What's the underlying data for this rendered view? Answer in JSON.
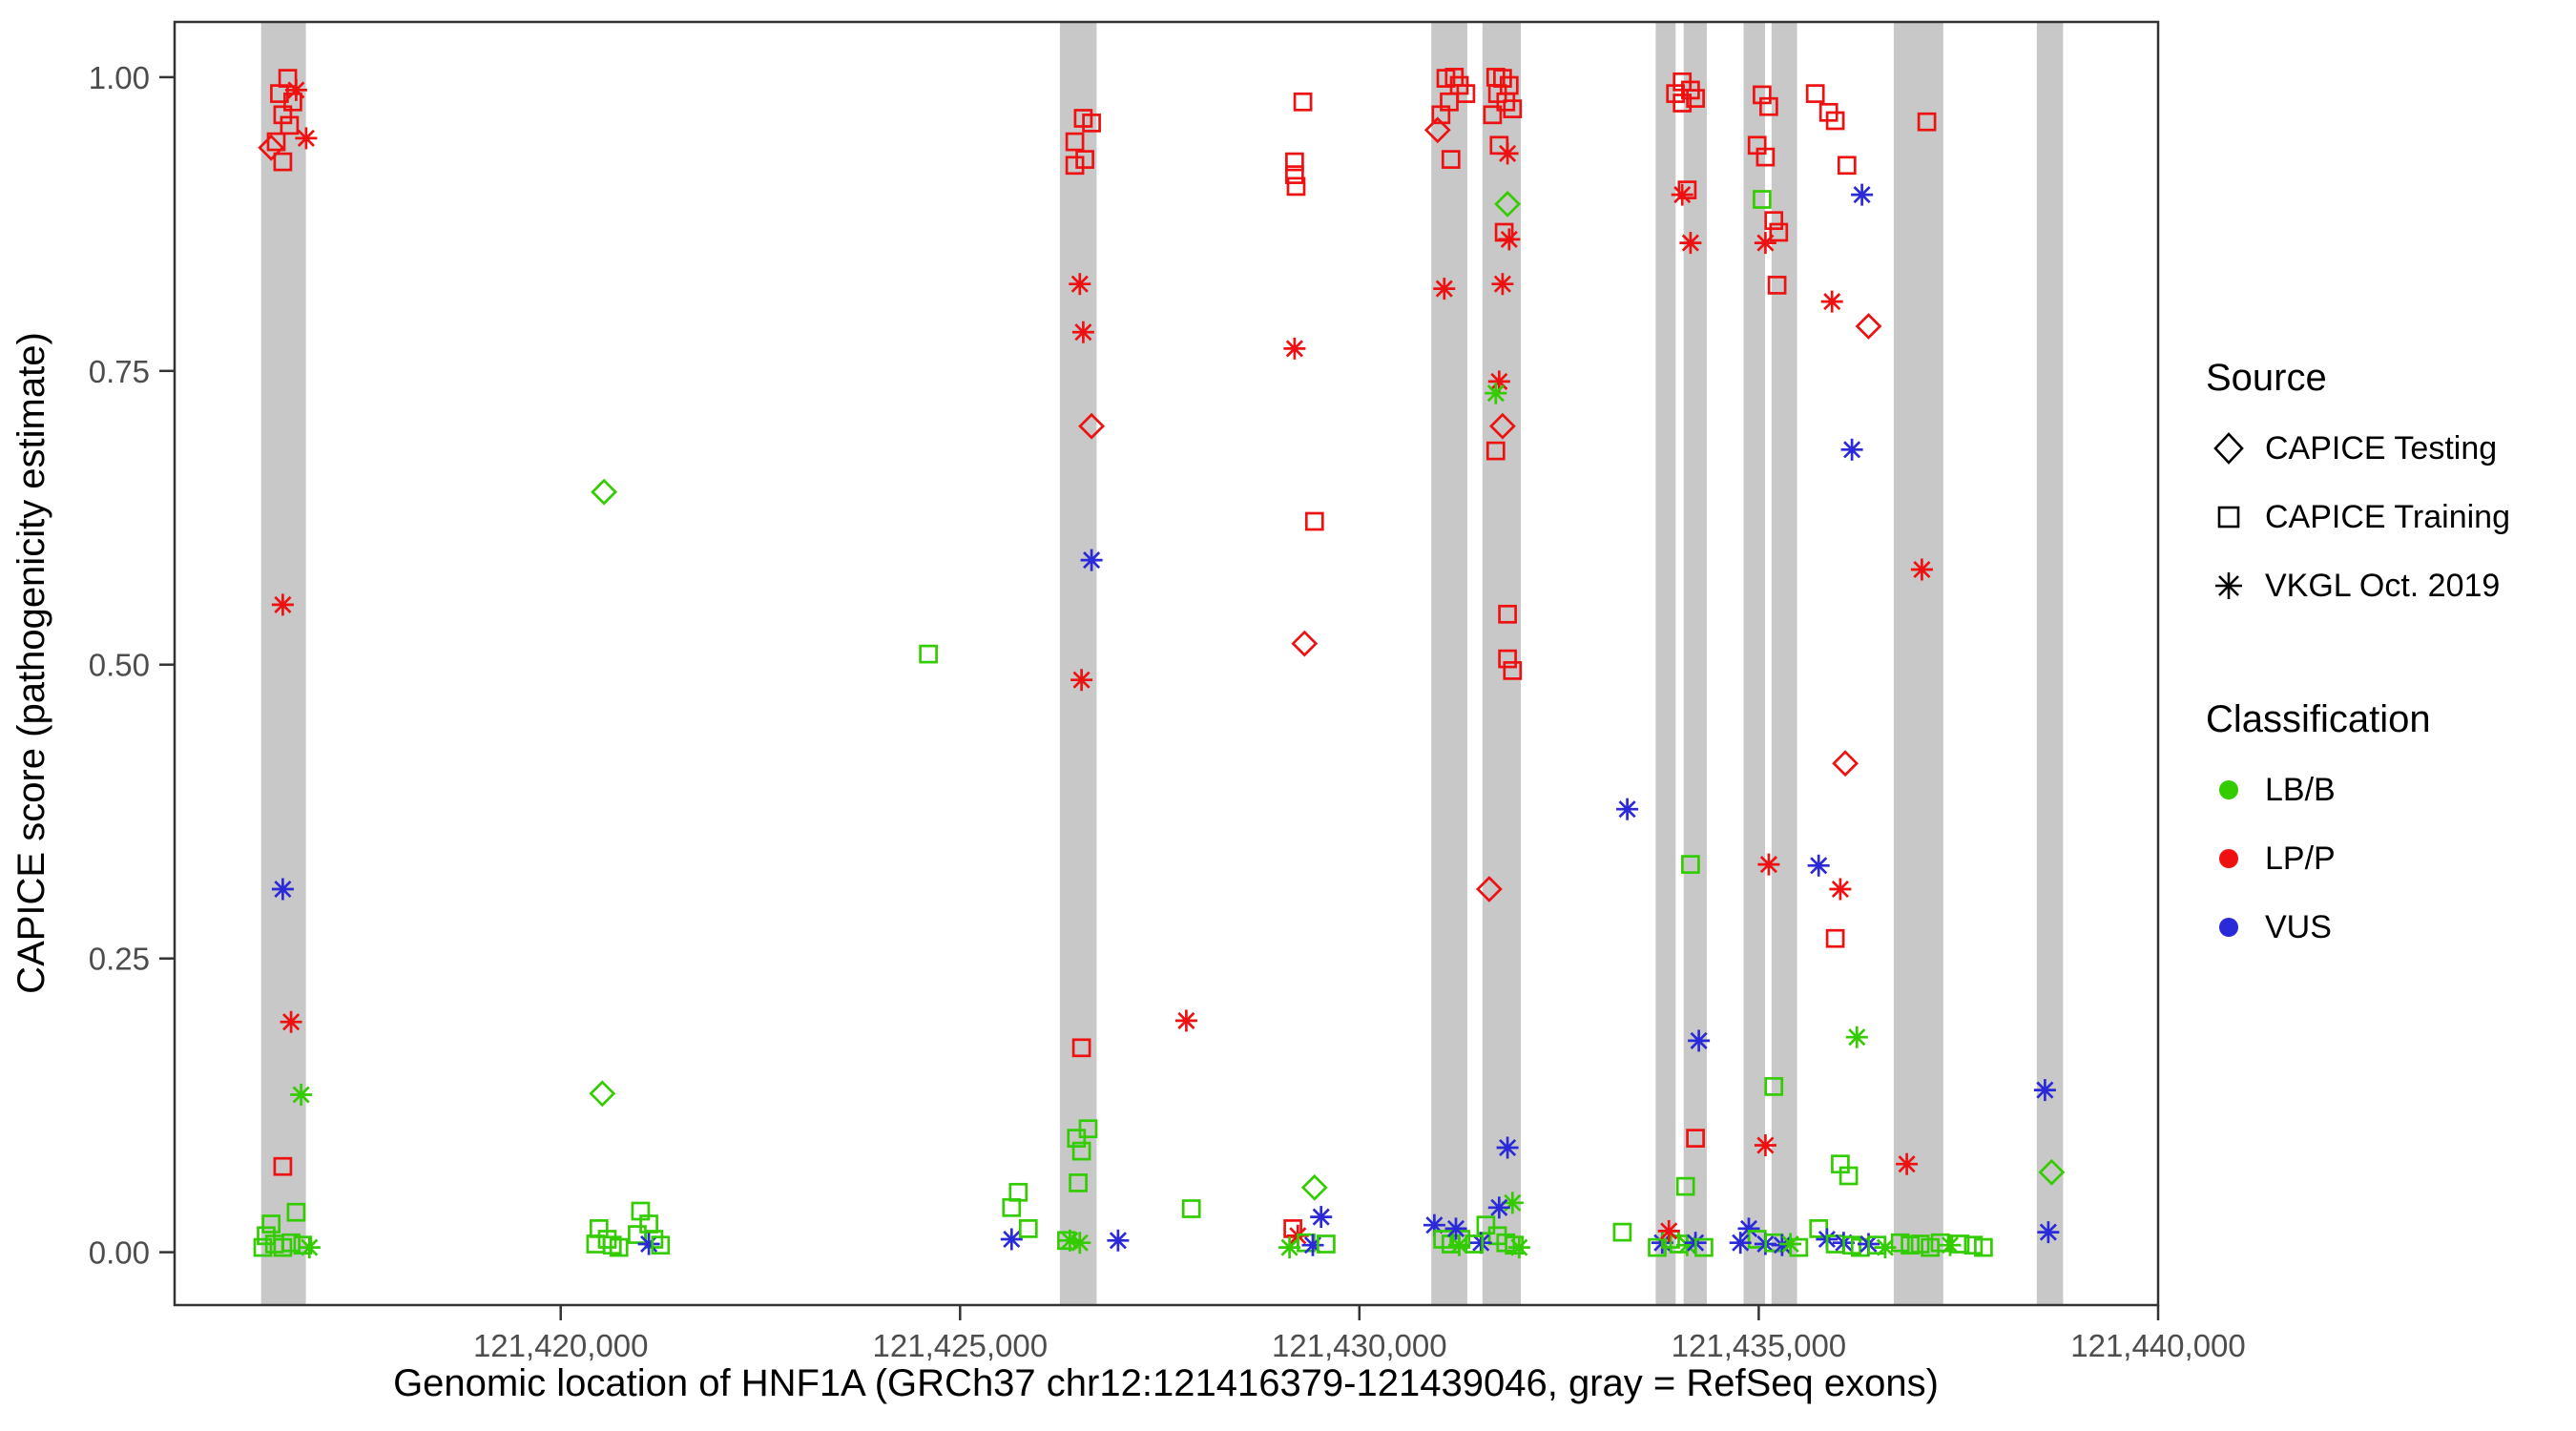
{
  "chart_data": {
    "type": "scatter",
    "title": "",
    "xlabel": "Genomic location of HNF1A (GRCh37 chr12:121416379-121439046, gray = RefSeq exons)",
    "ylabel": "CAPICE score (pathogenicity estimate)",
    "xlim": [
      121415166,
      121440000
    ],
    "ylim": [
      -0.045,
      1.047
    ],
    "grid": false,
    "legend_position": "right",
    "x_ticks": [
      {
        "v": 121420000,
        "label": "121,420,000"
      },
      {
        "v": 121425000,
        "label": "121,425,000"
      },
      {
        "v": 121430000,
        "label": "121,430,000"
      },
      {
        "v": 121435000,
        "label": "121,435,000"
      },
      {
        "v": 121440000,
        "label": "121,440,000"
      }
    ],
    "y_ticks": [
      {
        "v": 0.0,
        "label": "0.00"
      },
      {
        "v": 0.25,
        "label": "0.25"
      },
      {
        "v": 0.5,
        "label": "0.50"
      },
      {
        "v": 0.75,
        "label": "0.75"
      },
      {
        "v": 1.0,
        "label": "1.00"
      }
    ],
    "exon_color": "#C8C8C8",
    "exons": [
      [
        121416250,
        121416810
      ],
      [
        121426250,
        121426710
      ],
      [
        121430900,
        121431350
      ],
      [
        121431540,
        121432020
      ],
      [
        121433710,
        121433960
      ],
      [
        121434060,
        121434350
      ],
      [
        121434810,
        121435080
      ],
      [
        121435160,
        121435480
      ],
      [
        121436690,
        121437310
      ],
      [
        121438480,
        121438810
      ]
    ],
    "source_codes": {
      "D": "CAPICE Testing",
      "S": "CAPICE Training",
      "A": "VKGL Oct. 2019"
    },
    "source_shapes": {
      "CAPICE Testing": "diamond",
      "CAPICE Training": "square",
      "VKGL Oct. 2019": "asterisk"
    },
    "class_codes": {
      "B": "LB/B",
      "P": "LP/P",
      "V": "VUS"
    },
    "class_colors": {
      "LB/B": "#33CC00",
      "LP/P": "#EE1111",
      "VUS": "#2A2AD8"
    },
    "points": [
      [
        121416479,
        0.986,
        "S",
        "P"
      ],
      [
        121416583,
        0.999,
        "S",
        "P"
      ],
      [
        121416646,
        0.979,
        "S",
        "P"
      ],
      [
        121416521,
        0.968,
        "S",
        "P"
      ],
      [
        121416604,
        0.959,
        "S",
        "P"
      ],
      [
        121416438,
        0.945,
        "S",
        "P"
      ],
      [
        121416521,
        0.928,
        "S",
        "P"
      ],
      [
        121416375,
        0.94,
        "D",
        "P"
      ],
      [
        121416813,
        0.948,
        "A",
        "P"
      ],
      [
        121416688,
        0.989,
        "A",
        "P"
      ],
      [
        121416521,
        0.551,
        "A",
        "P"
      ],
      [
        121416521,
        0.309,
        "A",
        "V"
      ],
      [
        121416625,
        0.196,
        "A",
        "P"
      ],
      [
        121416750,
        0.134,
        "A",
        "B"
      ],
      [
        121416521,
        0.073,
        "S",
        "P"
      ],
      [
        121416375,
        0.024,
        "S",
        "B"
      ],
      [
        121416688,
        0.034,
        "S",
        "B"
      ],
      [
        121416313,
        0.014,
        "S",
        "B"
      ],
      [
        121416417,
        0.007,
        "S",
        "B"
      ],
      [
        121416521,
        0.004,
        "S",
        "B"
      ],
      [
        121416625,
        0.008,
        "S",
        "B"
      ],
      [
        121416771,
        0.006,
        "S",
        "B"
      ],
      [
        121416854,
        0.004,
        "A",
        "B"
      ],
      [
        121416271,
        0.004,
        "S",
        "B"
      ],
      [
        121420542,
        0.647,
        "D",
        "B"
      ],
      [
        121420521,
        0.135,
        "D",
        "B"
      ],
      [
        121420479,
        0.02,
        "S",
        "B"
      ],
      [
        121420583,
        0.011,
        "S",
        "B"
      ],
      [
        121420438,
        0.007,
        "S",
        "B"
      ],
      [
        121420646,
        0.006,
        "S",
        "B"
      ],
      [
        121420729,
        0.004,
        "S",
        "B"
      ],
      [
        121421000,
        0.035,
        "S",
        "B"
      ],
      [
        121421104,
        0.024,
        "S",
        "B"
      ],
      [
        121420958,
        0.015,
        "S",
        "B"
      ],
      [
        121421167,
        0.011,
        "S",
        "B"
      ],
      [
        121421104,
        0.007,
        "A",
        "V"
      ],
      [
        121421250,
        0.006,
        "S",
        "B"
      ],
      [
        121424604,
        0.509,
        "S",
        "B"
      ],
      [
        121425729,
        0.051,
        "S",
        "B"
      ],
      [
        121425646,
        0.038,
        "S",
        "B"
      ],
      [
        121425646,
        0.011,
        "A",
        "V"
      ],
      [
        121425854,
        0.02,
        "S",
        "B"
      ],
      [
        121426375,
        0.01,
        "A",
        "B"
      ],
      [
        121426979,
        0.01,
        "A",
        "V"
      ],
      [
        121426438,
        0.945,
        "S",
        "P"
      ],
      [
        121426542,
        0.965,
        "S",
        "P"
      ],
      [
        121426646,
        0.961,
        "S",
        "P"
      ],
      [
        121426438,
        0.925,
        "S",
        "P"
      ],
      [
        121426563,
        0.93,
        "S",
        "P"
      ],
      [
        121426500,
        0.824,
        "A",
        "P"
      ],
      [
        121426542,
        0.783,
        "A",
        "P"
      ],
      [
        121426646,
        0.703,
        "D",
        "P"
      ],
      [
        121426646,
        0.589,
        "A",
        "V"
      ],
      [
        121426521,
        0.487,
        "A",
        "P"
      ],
      [
        121426521,
        0.174,
        "S",
        "P"
      ],
      [
        121426458,
        0.097,
        "S",
        "B"
      ],
      [
        121426604,
        0.105,
        "S",
        "B"
      ],
      [
        121426521,
        0.086,
        "S",
        "B"
      ],
      [
        121426479,
        0.059,
        "S",
        "B"
      ],
      [
        121426333,
        0.01,
        "S",
        "B"
      ],
      [
        121426500,
        0.008,
        "A",
        "B"
      ],
      [
        121427833,
        0.197,
        "A",
        "P"
      ],
      [
        121427896,
        0.037,
        "S",
        "B"
      ],
      [
        121429292,
        0.979,
        "S",
        "P"
      ],
      [
        121429188,
        0.928,
        "S",
        "P"
      ],
      [
        121429188,
        0.917,
        "S",
        "P"
      ],
      [
        121429208,
        0.907,
        "S",
        "P"
      ],
      [
        121429188,
        0.769,
        "A",
        "P"
      ],
      [
        121429438,
        0.622,
        "S",
        "P"
      ],
      [
        121429313,
        0.518,
        "D",
        "P"
      ],
      [
        121429438,
        0.055,
        "D",
        "B"
      ],
      [
        121429521,
        0.03,
        "A",
        "V"
      ],
      [
        121429167,
        0.02,
        "S",
        "P"
      ],
      [
        121429229,
        0.014,
        "A",
        "P"
      ],
      [
        121429333,
        0.008,
        "S",
        "B"
      ],
      [
        121429417,
        0.006,
        "A",
        "V"
      ],
      [
        121429125,
        0.004,
        "A",
        "B"
      ],
      [
        121429583,
        0.007,
        "S",
        "B"
      ],
      [
        121431083,
        0.999,
        "S",
        "P"
      ],
      [
        121431188,
        1.0,
        "S",
        "P"
      ],
      [
        121431250,
        0.993,
        "S",
        "P"
      ],
      [
        121431333,
        0.986,
        "S",
        "P"
      ],
      [
        121431125,
        0.979,
        "S",
        "P"
      ],
      [
        121431021,
        0.968,
        "S",
        "P"
      ],
      [
        121430979,
        0.955,
        "D",
        "P"
      ],
      [
        121431146,
        0.93,
        "S",
        "P"
      ],
      [
        121431063,
        0.82,
        "A",
        "P"
      ],
      [
        121430938,
        0.023,
        "A",
        "V"
      ],
      [
        121431042,
        0.011,
        "S",
        "B"
      ],
      [
        121431146,
        0.007,
        "S",
        "B"
      ],
      [
        121431250,
        0.006,
        "A",
        "B"
      ],
      [
        121431708,
        1.0,
        "S",
        "P"
      ],
      [
        121431792,
        0.999,
        "S",
        "P"
      ],
      [
        121431875,
        0.993,
        "S",
        "P"
      ],
      [
        121431729,
        0.986,
        "S",
        "P"
      ],
      [
        121431833,
        0.979,
        "S",
        "P"
      ],
      [
        121431917,
        0.973,
        "S",
        "P"
      ],
      [
        121431667,
        0.968,
        "S",
        "P"
      ],
      [
        121431854,
        0.935,
        "A",
        "P"
      ],
      [
        121431750,
        0.942,
        "S",
        "P"
      ],
      [
        121431854,
        0.892,
        "D",
        "B"
      ],
      [
        121431813,
        0.868,
        "S",
        "P"
      ],
      [
        121431875,
        0.862,
        "A",
        "P"
      ],
      [
        121431792,
        0.824,
        "A",
        "P"
      ],
      [
        121431750,
        0.741,
        "A",
        "P"
      ],
      [
        121431708,
        0.731,
        "A",
        "B"
      ],
      [
        121431792,
        0.703,
        "D",
        "P"
      ],
      [
        121431708,
        0.682,
        "S",
        "P"
      ],
      [
        121431854,
        0.543,
        "S",
        "P"
      ],
      [
        121431854,
        0.505,
        "S",
        "P"
      ],
      [
        121431917,
        0.495,
        "S",
        "P"
      ],
      [
        121431625,
        0.309,
        "D",
        "P"
      ],
      [
        121431854,
        0.089,
        "A",
        "V"
      ],
      [
        121431917,
        0.042,
        "A",
        "B"
      ],
      [
        121431750,
        0.038,
        "A",
        "V"
      ],
      [
        121431583,
        0.023,
        "S",
        "B"
      ],
      [
        121431729,
        0.014,
        "S",
        "B"
      ],
      [
        121431833,
        0.008,
        "S",
        "B"
      ],
      [
        121431938,
        0.006,
        "S",
        "B"
      ],
      [
        121431521,
        0.008,
        "A",
        "V"
      ],
      [
        121432000,
        0.004,
        "A",
        "B"
      ],
      [
        121431438,
        0.007,
        "S",
        "B"
      ],
      [
        121431271,
        0.011,
        "S",
        "B"
      ],
      [
        121431208,
        0.02,
        "A",
        "V"
      ],
      [
        121433354,
        0.377,
        "A",
        "V"
      ],
      [
        121433292,
        0.017,
        "S",
        "B"
      ],
      [
        121434042,
        0.996,
        "S",
        "P"
      ],
      [
        121434146,
        0.989,
        "S",
        "P"
      ],
      [
        121434042,
        0.978,
        "S",
        "P"
      ],
      [
        121434208,
        0.982,
        "S",
        "P"
      ],
      [
        121433958,
        0.986,
        "S",
        "P"
      ],
      [
        121434042,
        0.9,
        "A",
        "P"
      ],
      [
        121434104,
        0.904,
        "S",
        "P"
      ],
      [
        121434146,
        0.859,
        "A",
        "P"
      ],
      [
        121434146,
        0.33,
        "S",
        "B"
      ],
      [
        121434250,
        0.18,
        "A",
        "V"
      ],
      [
        121434208,
        0.097,
        "S",
        "P"
      ],
      [
        121434083,
        0.056,
        "S",
        "B"
      ],
      [
        121433792,
        0.008,
        "A",
        "V"
      ],
      [
        121433896,
        0.011,
        "S",
        "B"
      ],
      [
        121434000,
        0.007,
        "S",
        "B"
      ],
      [
        121434104,
        0.006,
        "A",
        "B"
      ],
      [
        121434208,
        0.008,
        "A",
        "V"
      ],
      [
        121434313,
        0.004,
        "S",
        "B"
      ],
      [
        121433729,
        0.004,
        "S",
        "B"
      ],
      [
        121433875,
        0.018,
        "A",
        "P"
      ],
      [
        121435042,
        0.985,
        "S",
        "P"
      ],
      [
        121435125,
        0.975,
        "S",
        "P"
      ],
      [
        121434979,
        0.942,
        "S",
        "P"
      ],
      [
        121435083,
        0.932,
        "S",
        "P"
      ],
      [
        121435042,
        0.896,
        "S",
        "B"
      ],
      [
        121435188,
        0.878,
        "S",
        "P"
      ],
      [
        121435250,
        0.868,
        "S",
        "P"
      ],
      [
        121435083,
        0.859,
        "A",
        "P"
      ],
      [
        121435229,
        0.823,
        "S",
        "P"
      ],
      [
        121435125,
        0.33,
        "A",
        "P"
      ],
      [
        121435188,
        0.141,
        "S",
        "B"
      ],
      [
        121435083,
        0.091,
        "A",
        "P"
      ],
      [
        121434875,
        0.02,
        "A",
        "V"
      ],
      [
        121434979,
        0.011,
        "S",
        "B"
      ],
      [
        121435083,
        0.007,
        "A",
        "V"
      ],
      [
        121435188,
        0.008,
        "S",
        "B"
      ],
      [
        121435292,
        0.006,
        "A",
        "V"
      ],
      [
        121435396,
        0.007,
        "A",
        "B"
      ],
      [
        121435500,
        0.004,
        "S",
        "B"
      ],
      [
        121434771,
        0.008,
        "A",
        "V"
      ],
      [
        121435708,
        0.986,
        "S",
        "P"
      ],
      [
        121435875,
        0.97,
        "S",
        "P"
      ],
      [
        121435958,
        0.963,
        "S",
        "P"
      ],
      [
        121436104,
        0.925,
        "S",
        "P"
      ],
      [
        121436292,
        0.9,
        "A",
        "V"
      ],
      [
        121435917,
        0.809,
        "A",
        "P"
      ],
      [
        121436375,
        0.788,
        "D",
        "P"
      ],
      [
        121436167,
        0.683,
        "A",
        "V"
      ],
      [
        121436083,
        0.416,
        "D",
        "P"
      ],
      [
        121435750,
        0.329,
        "A",
        "V"
      ],
      [
        121436021,
        0.309,
        "A",
        "P"
      ],
      [
        121435958,
        0.267,
        "S",
        "P"
      ],
      [
        121436229,
        0.183,
        "A",
        "B"
      ],
      [
        121436021,
        0.075,
        "S",
        "B"
      ],
      [
        121436125,
        0.065,
        "S",
        "B"
      ],
      [
        121435750,
        0.02,
        "S",
        "B"
      ],
      [
        121435854,
        0.011,
        "A",
        "V"
      ],
      [
        121435958,
        0.007,
        "S",
        "B"
      ],
      [
        121436063,
        0.008,
        "A",
        "V"
      ],
      [
        121436167,
        0.006,
        "S",
        "B"
      ],
      [
        121436271,
        0.004,
        "S",
        "B"
      ],
      [
        121436375,
        0.007,
        "A",
        "V"
      ],
      [
        121436479,
        0.006,
        "S",
        "B"
      ],
      [
        121436583,
        0.004,
        "A",
        "B"
      ],
      [
        121437104,
        0.962,
        "S",
        "P"
      ],
      [
        121437042,
        0.581,
        "A",
        "P"
      ],
      [
        121436854,
        0.075,
        "A",
        "P"
      ],
      [
        121436771,
        0.008,
        "S",
        "B"
      ],
      [
        121436896,
        0.006,
        "S",
        "B"
      ],
      [
        121437021,
        0.007,
        "S",
        "B"
      ],
      [
        121437146,
        0.004,
        "S",
        "B"
      ],
      [
        121437271,
        0.008,
        "S",
        "B"
      ],
      [
        121437396,
        0.006,
        "A",
        "B"
      ],
      [
        121437521,
        0.007,
        "S",
        "B"
      ],
      [
        121437688,
        0.006,
        "S",
        "B"
      ],
      [
        121437813,
        0.004,
        "S",
        "B"
      ],
      [
        121438583,
        0.138,
        "A",
        "V"
      ],
      [
        121438667,
        0.068,
        "D",
        "B"
      ],
      [
        121438625,
        0.017,
        "A",
        "V"
      ]
    ]
  },
  "legend": {
    "source_title": "Source",
    "source_items": [
      {
        "label": "CAPICE Testing",
        "shape": "diamond"
      },
      {
        "label": "CAPICE Training",
        "shape": "square"
      },
      {
        "label": "VKGL Oct. 2019",
        "shape": "asterisk"
      }
    ],
    "class_title": "Classification",
    "class_items": [
      {
        "label": "LB/B",
        "color": "#33CC00"
      },
      {
        "label": "LP/P",
        "color": "#EE1111"
      },
      {
        "label": "VUS",
        "color": "#2A2AD8"
      }
    ]
  }
}
